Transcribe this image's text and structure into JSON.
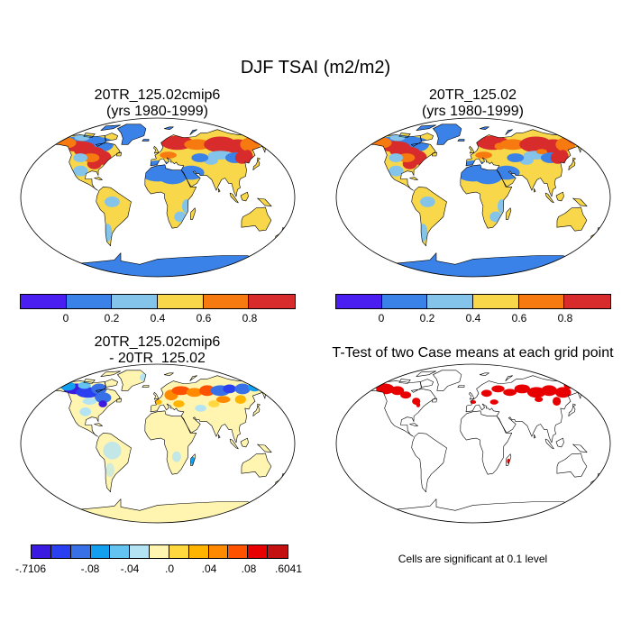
{
  "title": "DJF TSAI (m2/m2)",
  "panels": [
    {
      "line1": "20TR_125.02cmip6",
      "line2": "(yrs 1980-1999)"
    },
    {
      "line1": "20TR_125.02",
      "line2": "(yrs 1980-1999)"
    },
    {
      "line1": "20TR_125.02cmip6",
      "line2": "- 20TR_125.02"
    },
    {
      "line1": "T-Test of two Case means at each grid point",
      "line2": ""
    }
  ],
  "colorbar_abs": {
    "colors": [
      "#4a1ef0",
      "#3a82e8",
      "#84c4ea",
      "#f8d84a",
      "#f77a10",
      "#d82c2c"
    ],
    "labels": [
      "0",
      "0.2",
      "0.4",
      "0.6",
      "0.8"
    ]
  },
  "colorbar_diff": {
    "colors": [
      "#3c1be0",
      "#2a40f0",
      "#3870e8",
      "#12a0ee",
      "#64c3f0",
      "#b4e4f4",
      "#fff5b0",
      "#ffd840",
      "#ffb400",
      "#ff8a00",
      "#ff5200",
      "#e80000",
      "#c41010"
    ],
    "labels": [
      "-.7106",
      "-.08",
      "-.04",
      ".0",
      ".04",
      ".08",
      ".6041"
    ]
  },
  "significance_note": "Cells are significant at 0.1 level"
}
